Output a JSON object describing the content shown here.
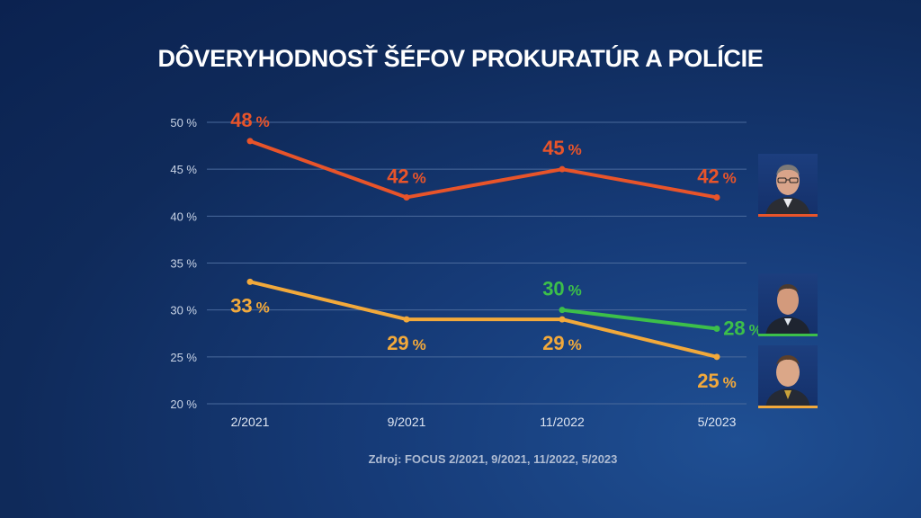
{
  "title": "DÔVERYHODNOSŤ ŠÉFOV PROKURATÚR A POLÍCIE",
  "source": "Zdroj: FOCUS 2/2021, 9/2021, 11/2022, 5/2023",
  "colors": {
    "background": "#0f2a5a",
    "grid": "#4a6a9c",
    "orange": "#e8542a",
    "yellow": "#f2a93b",
    "green": "#3cbf4a"
  },
  "chart_data": {
    "type": "line",
    "title": "DÔVERYHODNOSŤ ŠÉFOV PROKURATÚR A POLÍCIE",
    "xlabel": "",
    "ylabel": "",
    "categories": [
      "2/2021",
      "9/2021",
      "11/2022",
      "5/2023"
    ],
    "ylim": [
      20,
      50
    ],
    "yticks": [
      20,
      25,
      30,
      35,
      40,
      45,
      50
    ],
    "ytick_labels": [
      "20 %",
      "25 %",
      "30 %",
      "35 %",
      "40 %",
      "45 %",
      "50 %"
    ],
    "unit": "%",
    "grid": true,
    "series": [
      {
        "name": "orange",
        "color": "#e8542a",
        "values": [
          48,
          42,
          45,
          42
        ],
        "labels": [
          "48",
          "42",
          "45",
          "42"
        ],
        "label_pos": [
          "above",
          "above",
          "above",
          "above"
        ]
      },
      {
        "name": "yellow",
        "color": "#f2a93b",
        "values": [
          33,
          29,
          29,
          25
        ],
        "labels": [
          "33",
          "29",
          "29",
          "25"
        ],
        "label_pos": [
          "below",
          "below",
          "below",
          "below"
        ]
      },
      {
        "name": "green",
        "color": "#3cbf4a",
        "values": [
          null,
          null,
          30,
          28
        ],
        "labels": [
          null,
          null,
          "30",
          "28"
        ],
        "label_pos": [
          null,
          null,
          "above",
          "right"
        ]
      }
    ]
  },
  "portraits": [
    {
      "name": "portrait-prosecutor",
      "color": "#e8542a"
    },
    {
      "name": "portrait-police-chief",
      "color": "#3cbf4a"
    },
    {
      "name": "portrait-politician",
      "color": "#f2a93b"
    }
  ]
}
